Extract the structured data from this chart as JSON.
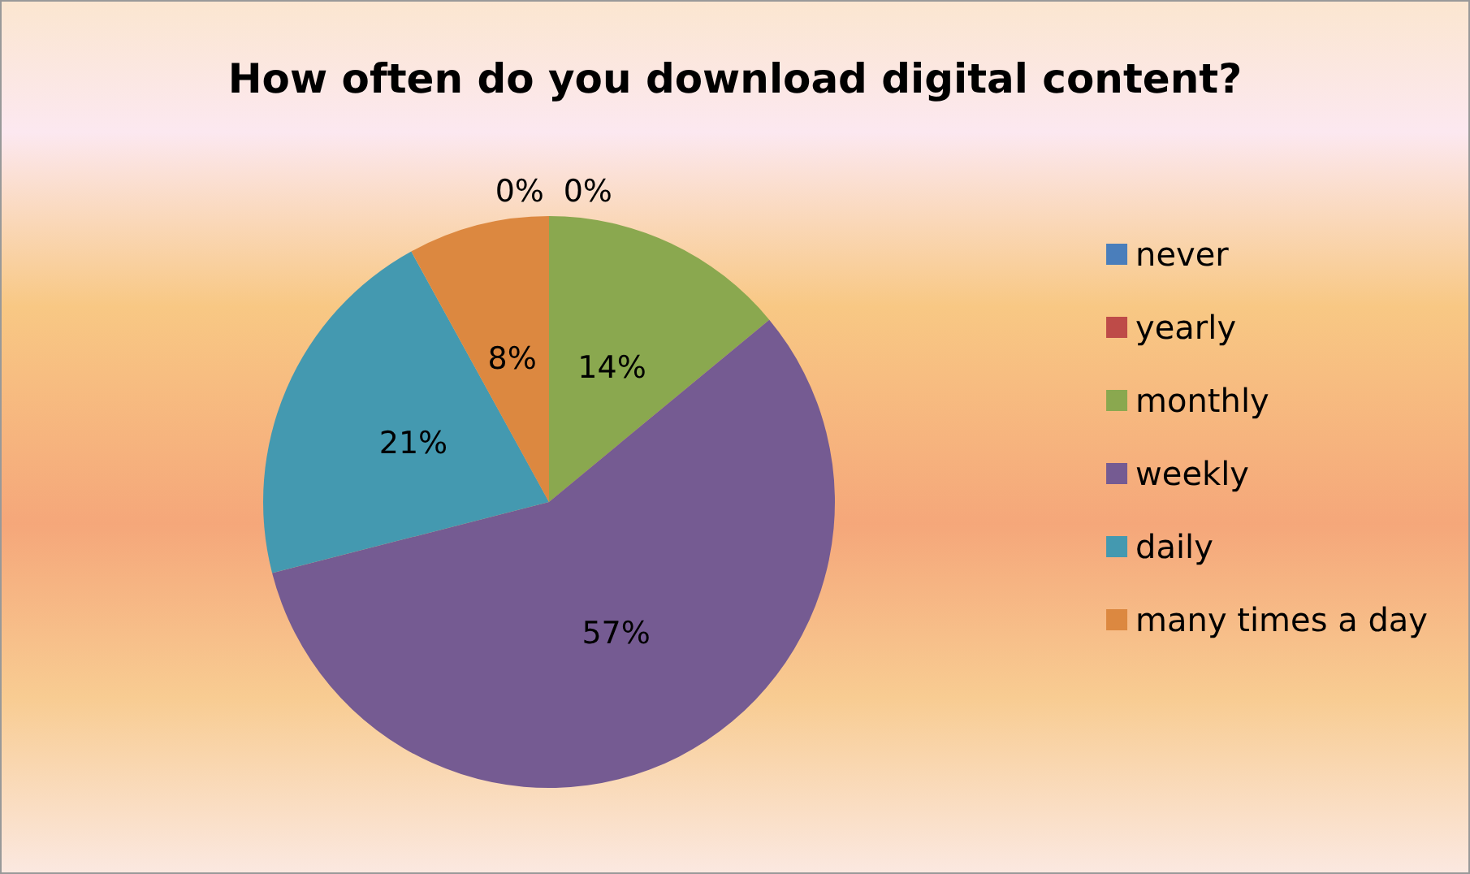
{
  "chart_data": {
    "type": "pie",
    "title": "How often do you download digital content?",
    "categories": [
      "never",
      "yearly",
      "monthly",
      "weekly",
      "daily",
      "many times a day"
    ],
    "values": [
      0,
      0,
      14,
      57,
      21,
      8
    ],
    "colors": [
      "#4a7ebb",
      "#be4b48",
      "#8aa84f",
      "#755b92",
      "#4499b0",
      "#dc8840"
    ],
    "value_labels": [
      "0%",
      "0%",
      "14%",
      "57%",
      "21%",
      "8%"
    ],
    "legend": "right"
  }
}
